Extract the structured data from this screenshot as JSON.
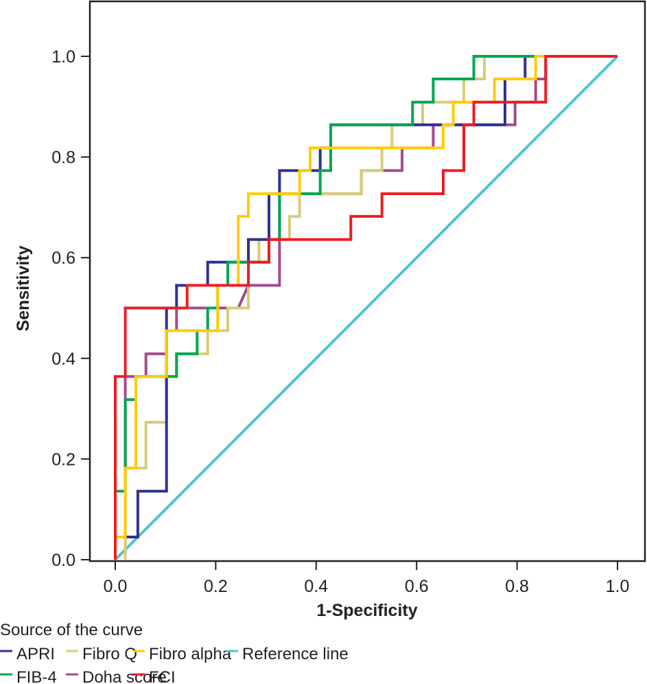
{
  "chart_data": {
    "type": "line",
    "title": "",
    "xlabel": "1-Specificity",
    "ylabel": "Sensitivity",
    "xlim": [
      0,
      1
    ],
    "ylim": [
      0,
      1
    ],
    "x_ticks": [
      "0.0",
      "0.2",
      "0.4",
      "0.6",
      "0.8",
      "1.0"
    ],
    "y_ticks": [
      "0.0",
      "0.2",
      "0.4",
      "0.6",
      "0.8",
      "1.0"
    ],
    "grid": false,
    "legend_title": "Source of the curve",
    "legend_position": "bottom",
    "series": [
      {
        "name": "APRI",
        "color": "#2e3192",
        "points": [
          [
            0,
            0
          ],
          [
            0,
            0.045
          ],
          [
            0.045,
            0.045
          ],
          [
            0.045,
            0.136
          ],
          [
            0.102,
            0.136
          ],
          [
            0.102,
            0.5
          ],
          [
            0.122,
            0.5
          ],
          [
            0.122,
            0.545
          ],
          [
            0.184,
            0.545
          ],
          [
            0.184,
            0.591
          ],
          [
            0.265,
            0.591
          ],
          [
            0.265,
            0.636
          ],
          [
            0.306,
            0.636
          ],
          [
            0.306,
            0.727
          ],
          [
            0.327,
            0.727
          ],
          [
            0.327,
            0.773
          ],
          [
            0.408,
            0.773
          ],
          [
            0.408,
            0.818
          ],
          [
            0.429,
            0.818
          ],
          [
            0.429,
            0.864
          ],
          [
            0.776,
            0.864
          ],
          [
            0.776,
            0.955
          ],
          [
            0.816,
            0.955
          ],
          [
            0.816,
            1
          ],
          [
            1,
            1
          ]
        ]
      },
      {
        "name": "FIB-4",
        "color": "#00a651",
        "points": [
          [
            0,
            0
          ],
          [
            0,
            0.136
          ],
          [
            0.02,
            0.136
          ],
          [
            0.02,
            0.318
          ],
          [
            0.041,
            0.318
          ],
          [
            0.041,
            0.364
          ],
          [
            0.122,
            0.364
          ],
          [
            0.122,
            0.409
          ],
          [
            0.163,
            0.409
          ],
          [
            0.163,
            0.455
          ],
          [
            0.184,
            0.455
          ],
          [
            0.184,
            0.5
          ],
          [
            0.204,
            0.5
          ],
          [
            0.204,
            0.545
          ],
          [
            0.224,
            0.545
          ],
          [
            0.224,
            0.591
          ],
          [
            0.306,
            0.591
          ],
          [
            0.306,
            0.636
          ],
          [
            0.327,
            0.636
          ],
          [
            0.327,
            0.727
          ],
          [
            0.408,
            0.727
          ],
          [
            0.408,
            0.773
          ],
          [
            0.429,
            0.773
          ],
          [
            0.429,
            0.864
          ],
          [
            0.592,
            0.864
          ],
          [
            0.592,
            0.909
          ],
          [
            0.633,
            0.909
          ],
          [
            0.633,
            0.955
          ],
          [
            0.714,
            0.955
          ],
          [
            0.714,
            1
          ],
          [
            1,
            1
          ]
        ]
      },
      {
        "name": "Fibro Q",
        "color": "#d7cd75",
        "points": [
          [
            0.02,
            0
          ],
          [
            0.02,
            0.182
          ],
          [
            0.061,
            0.182
          ],
          [
            0.061,
            0.227
          ],
          [
            0.061,
            0.273
          ],
          [
            0.102,
            0.273
          ],
          [
            0.102,
            0.364
          ],
          [
            0.122,
            0.364
          ],
          [
            0.122,
            0.409
          ],
          [
            0.184,
            0.409
          ],
          [
            0.184,
            0.455
          ],
          [
            0.224,
            0.455
          ],
          [
            0.224,
            0.5
          ],
          [
            0.265,
            0.5
          ],
          [
            0.265,
            0.591
          ],
          [
            0.286,
            0.591
          ],
          [
            0.286,
            0.636
          ],
          [
            0.347,
            0.636
          ],
          [
            0.347,
            0.682
          ],
          [
            0.367,
            0.682
          ],
          [
            0.367,
            0.727
          ],
          [
            0.49,
            0.727
          ],
          [
            0.49,
            0.773
          ],
          [
            0.531,
            0.773
          ],
          [
            0.531,
            0.818
          ],
          [
            0.551,
            0.818
          ],
          [
            0.551,
            0.864
          ],
          [
            0.612,
            0.864
          ],
          [
            0.612,
            0.909
          ],
          [
            0.694,
            0.909
          ],
          [
            0.694,
            0.955
          ],
          [
            0.735,
            0.955
          ],
          [
            0.735,
            1
          ],
          [
            1,
            1
          ]
        ]
      },
      {
        "name": "Doha score",
        "color": "#a54a8e",
        "points": [
          [
            0,
            0
          ],
          [
            0,
            0.045
          ],
          [
            0.02,
            0.045
          ],
          [
            0.02,
            0.364
          ],
          [
            0.061,
            0.364
          ],
          [
            0.061,
            0.409
          ],
          [
            0.102,
            0.409
          ],
          [
            0.102,
            0.455
          ],
          [
            0.122,
            0.455
          ],
          [
            0.122,
            0.5
          ],
          [
            0.245,
            0.5
          ],
          [
            0.265,
            0.545
          ],
          [
            0.327,
            0.545
          ],
          [
            0.327,
            0.727
          ],
          [
            0.49,
            0.727
          ],
          [
            0.49,
            0.773
          ],
          [
            0.571,
            0.773
          ],
          [
            0.571,
            0.818
          ],
          [
            0.633,
            0.818
          ],
          [
            0.633,
            0.864
          ],
          [
            0.673,
            0.864
          ],
          [
            0.796,
            0.864
          ],
          [
            0.796,
            0.909
          ],
          [
            0.837,
            0.909
          ],
          [
            0.837,
            0.955
          ],
          [
            0.857,
            0.955
          ],
          [
            0.857,
            1
          ],
          [
            1,
            1
          ]
        ]
      },
      {
        "name": "Fibro alpha",
        "color": "#ffcb05",
        "points": [
          [
            0,
            0
          ],
          [
            0,
            0.045
          ],
          [
            0.02,
            0.045
          ],
          [
            0.02,
            0.182
          ],
          [
            0.041,
            0.182
          ],
          [
            0.041,
            0.364
          ],
          [
            0.102,
            0.364
          ],
          [
            0.102,
            0.455
          ],
          [
            0.204,
            0.455
          ],
          [
            0.204,
            0.545
          ],
          [
            0.245,
            0.545
          ],
          [
            0.245,
            0.682
          ],
          [
            0.265,
            0.682
          ],
          [
            0.265,
            0.727
          ],
          [
            0.367,
            0.727
          ],
          [
            0.367,
            0.773
          ],
          [
            0.388,
            0.773
          ],
          [
            0.388,
            0.818
          ],
          [
            0.653,
            0.818
          ],
          [
            0.653,
            0.864
          ],
          [
            0.673,
            0.864
          ],
          [
            0.673,
            0.909
          ],
          [
            0.755,
            0.909
          ],
          [
            0.755,
            0.955
          ],
          [
            0.837,
            0.955
          ],
          [
            0.837,
            1
          ],
          [
            1,
            1
          ]
        ]
      },
      {
        "name": "FCI",
        "color": "#ed1c24",
        "points": [
          [
            0,
            0
          ],
          [
            0,
            0.364
          ],
          [
            0.02,
            0.364
          ],
          [
            0.02,
            0.5
          ],
          [
            0.143,
            0.5
          ],
          [
            0.143,
            0.545
          ],
          [
            0.265,
            0.545
          ],
          [
            0.265,
            0.591
          ],
          [
            0.306,
            0.591
          ],
          [
            0.306,
            0.636
          ],
          [
            0.469,
            0.636
          ],
          [
            0.469,
            0.682
          ],
          [
            0.531,
            0.682
          ],
          [
            0.531,
            0.727
          ],
          [
            0.653,
            0.727
          ],
          [
            0.653,
            0.773
          ],
          [
            0.694,
            0.773
          ],
          [
            0.694,
            0.864
          ],
          [
            0.714,
            0.864
          ],
          [
            0.714,
            0.909
          ],
          [
            0.857,
            0.909
          ],
          [
            0.857,
            1
          ],
          [
            1,
            1
          ]
        ]
      },
      {
        "name": "Reference line",
        "color": "#4fc3cf",
        "points": [
          [
            0,
            0
          ],
          [
            1,
            1
          ]
        ]
      }
    ],
    "legend": [
      {
        "name": "APRI",
        "color": "#2e3192"
      },
      {
        "name": "Fibro Q",
        "color": "#d7cd75"
      },
      {
        "name": "Fibro alpha",
        "color": "#ffcb05"
      },
      {
        "name": "Reference line",
        "color": "#4fc3cf"
      },
      {
        "name": "FIB-4",
        "color": "#00a651"
      },
      {
        "name": "Doha score",
        "color": "#a54a8e"
      },
      {
        "name": "FCI",
        "color": "#ed1c24"
      }
    ]
  }
}
